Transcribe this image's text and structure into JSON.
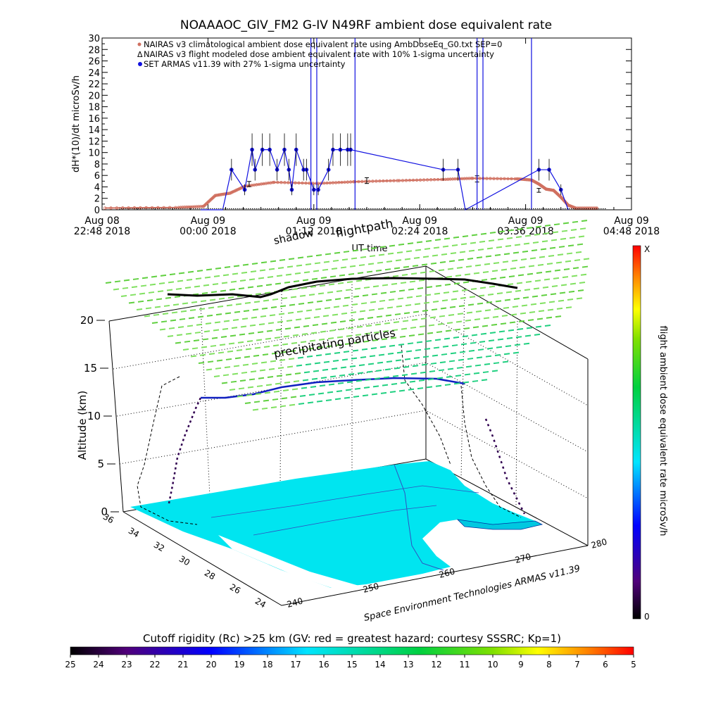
{
  "top_chart": {
    "title": "NOAAAOC_GIV_FM2 G-IV    N49RF  ambient dose equivalent rate",
    "ylabel": "dH*(10)/dt microSv/h",
    "xlabel": "UT time",
    "legend": [
      "NAIRAS v3 climatological ambient dose equivalent rate using AmbDoseEq_G0.txt SEP=0",
      "NAIRAS v3 flight modeled dose ambient equivalent rate with 10% 1-sigma uncertainty",
      "SET ARMAS v11.39 with 27% 1-sigma uncertainty"
    ],
    "x_ticks": [
      {
        "line1": "Aug 08",
        "line2": "22:48 2018"
      },
      {
        "line1": "Aug 09",
        "line2": "00:00 2018"
      },
      {
        "line1": "Aug 09",
        "line2": "01:12 2018"
      },
      {
        "line1": "Aug 09",
        "line2": "02:24 2018"
      },
      {
        "line1": "Aug 09",
        "line2": "03:36 2018"
      },
      {
        "line1": "Aug 09",
        "line2": "04:48 2018"
      }
    ],
    "y_ticks": [
      "0",
      "2",
      "4",
      "6",
      "8",
      "10",
      "12",
      "14",
      "16",
      "18",
      "20",
      "22",
      "24",
      "26",
      "28",
      "30"
    ]
  },
  "scene": {
    "label_shadow": "shadow",
    "label_flightpath": "flightpath",
    "label_particles": "precipitating particles",
    "altitude_label": "Altitude (km)",
    "altitude_ticks": [
      "0",
      "5",
      "10",
      "15",
      "20"
    ],
    "lat_ticks": [
      "36",
      "34",
      "32",
      "30",
      "28",
      "26",
      "24"
    ],
    "lon_ticks": [
      "240",
      "250",
      "260",
      "270",
      "280"
    ],
    "credit": "Space Environment Technologies ARMAS v11.39"
  },
  "right_colorbar": {
    "label": "flight ambient dose equivalent rate microSv/h",
    "top": "X",
    "bottom": "0"
  },
  "bottom_colorbar": {
    "title": "Cutoff rigidity (Rc) >25 km (GV: red = greatest hazard; courtesy SSSRC; Kp=1)",
    "ticks": [
      "25",
      "24",
      "23",
      "22",
      "21",
      "20",
      "19",
      "18",
      "17",
      "16",
      "15",
      "14",
      "13",
      "12",
      "11",
      "10",
      "9",
      "8",
      "7",
      "6",
      "5"
    ]
  },
  "colors": {
    "nairas": "#d07060",
    "flight_model": "#000000",
    "armas": "#1010e0",
    "surface": "#00e5f0",
    "particles": "#40d040"
  },
  "chart_data": {
    "type": "line",
    "title": "NOAAAOC_GIV_FM2 G-IV    N49RF  ambient dose equivalent rate",
    "xlabel": "UT time",
    "ylabel": "dH*(10)/dt microSv/h",
    "xlim": [
      "2018-08-08 22:48",
      "2018-08-09 04:48"
    ],
    "ylim": [
      0,
      30
    ],
    "series": [
      {
        "name": "NAIRAS v3 climatological ambient dose equivalent rate using AmbDoseEq_G0.txt SEP=0",
        "x": [
          "2018-08-08 22:50",
          "2018-08-08 23:40",
          "2018-08-08 23:57",
          "2018-08-09 00:05",
          "2018-08-09 00:15",
          "2018-08-09 00:25",
          "2018-08-09 00:45",
          "2018-08-09 01:15",
          "2018-08-09 01:40",
          "2018-08-09 02:10",
          "2018-08-09 02:40",
          "2018-08-09 03:00",
          "2018-08-09 03:30",
          "2018-08-09 03:40",
          "2018-08-09 03:45",
          "2018-08-09 03:50",
          "2018-08-09 03:55",
          "2018-08-09 04:00",
          "2018-08-09 04:05",
          "2018-08-09 04:10",
          "2018-08-09 04:25"
        ],
        "values": [
          0.3,
          0.4,
          0.6,
          2.5,
          2.9,
          4.1,
          4.8,
          4.6,
          4.9,
          5.1,
          5.3,
          5.5,
          5.4,
          5.2,
          4.5,
          3.6,
          3.4,
          2.2,
          0.8,
          0.3,
          0.3
        ]
      },
      {
        "name": "NAIRAS v3 flight modeled dose ambient equivalent rate with 10% 1-sigma uncertainty",
        "x": [
          "2018-08-09 00:28",
          "2018-08-09 01:48",
          "2018-08-09 03:03",
          "2018-08-09 03:45"
        ],
        "values": [
          4.5,
          5.1,
          5.4,
          3.4
        ]
      },
      {
        "name": "SET ARMAS v11.39 with 27% 1-sigma uncertainty",
        "x": [
          "2018-08-08 23:55",
          "2018-08-09 00:10",
          "2018-08-09 00:16",
          "2018-08-09 00:25",
          "2018-08-09 00:30",
          "2018-08-09 00:32",
          "2018-08-09 00:37",
          "2018-08-09 00:42",
          "2018-08-09 00:47",
          "2018-08-09 00:52",
          "2018-08-09 00:55",
          "2018-08-09 00:57",
          "2018-08-09 01:00",
          "2018-08-09 01:05",
          "2018-08-09 01:07",
          "2018-08-09 01:12",
          "2018-08-09 01:15",
          "2018-08-09 01:22",
          "2018-08-09 01:25",
          "2018-08-09 01:30",
          "2018-08-09 01:35",
          "2018-08-09 01:37",
          "2018-08-09 02:40",
          "2018-08-09 02:50",
          "2018-08-09 02:55",
          "2018-08-09 03:45",
          "2018-08-09 03:52",
          "2018-08-09 04:00",
          "2018-08-09 04:05"
        ],
        "values": [
          0,
          0,
          7,
          3.5,
          10.5,
          7,
          10.5,
          10.5,
          7,
          10.5,
          7,
          3.5,
          10.5,
          7,
          7,
          3.5,
          3.5,
          7,
          10.5,
          10.5,
          10.5,
          10.5,
          7,
          7,
          0,
          7,
          7,
          3.5,
          0
        ]
      }
    ]
  }
}
